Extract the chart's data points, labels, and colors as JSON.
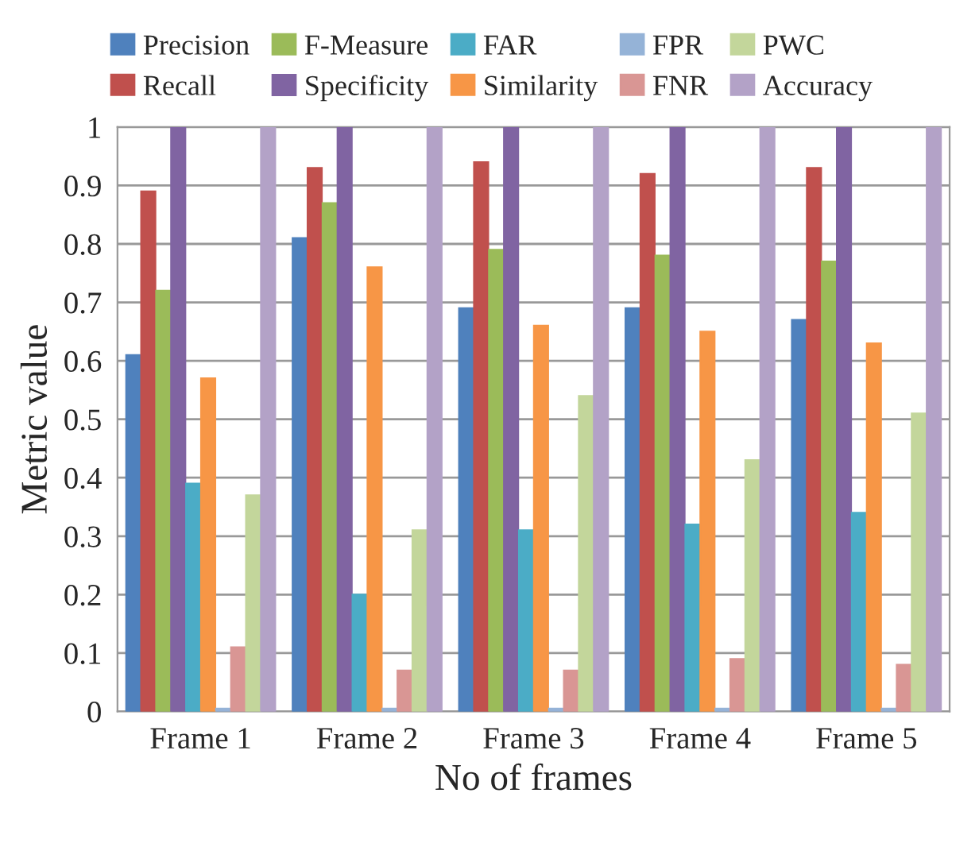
{
  "chart_data": {
    "type": "bar",
    "xlabel": "No of frames",
    "ylabel": "Metric value",
    "categories": [
      "Frame 1",
      "Frame 2",
      "Frame 3",
      "Frame 4",
      "Frame 5"
    ],
    "series": [
      {
        "name": "Precision",
        "color": "#4f81bd",
        "values": [
          0.61,
          0.81,
          0.69,
          0.69,
          0.67
        ]
      },
      {
        "name": "Recall",
        "color": "#c0504d",
        "values": [
          0.89,
          0.93,
          0.94,
          0.92,
          0.93
        ]
      },
      {
        "name": "F-Measure",
        "color": "#9bbb59",
        "values": [
          0.72,
          0.87,
          0.79,
          0.78,
          0.77
        ]
      },
      {
        "name": "Specificity",
        "color": "#8064a2",
        "values": [
          1,
          1,
          1,
          1,
          1
        ]
      },
      {
        "name": "FAR",
        "color": "#4bacc6",
        "values": [
          0.39,
          0.2,
          0.31,
          0.32,
          0.34
        ]
      },
      {
        "name": "Similarity",
        "color": "#f79646",
        "values": [
          0.57,
          0.76,
          0.66,
          0.65,
          0.63
        ]
      },
      {
        "name": "FPR",
        "color": "#95b3d7",
        "values": [
          0.005,
          0.005,
          0.005,
          0.005,
          0.005
        ]
      },
      {
        "name": "FNR",
        "color": "#d99694",
        "values": [
          0.11,
          0.07,
          0.07,
          0.09,
          0.08
        ]
      },
      {
        "name": "PWC",
        "color": "#c3d69b",
        "values": [
          0.37,
          0.31,
          0.54,
          0.43,
          0.51
        ]
      },
      {
        "name": "Accuracy",
        "color": "#b3a2c7",
        "values": [
          1,
          1,
          1,
          1,
          1
        ]
      }
    ],
    "ylim": [
      0,
      1
    ],
    "yticks": [
      0,
      0.1,
      0.2,
      0.3,
      0.4,
      0.5,
      0.6,
      0.7,
      0.8,
      0.9,
      1
    ],
    "grid": "y",
    "legend": "top"
  }
}
